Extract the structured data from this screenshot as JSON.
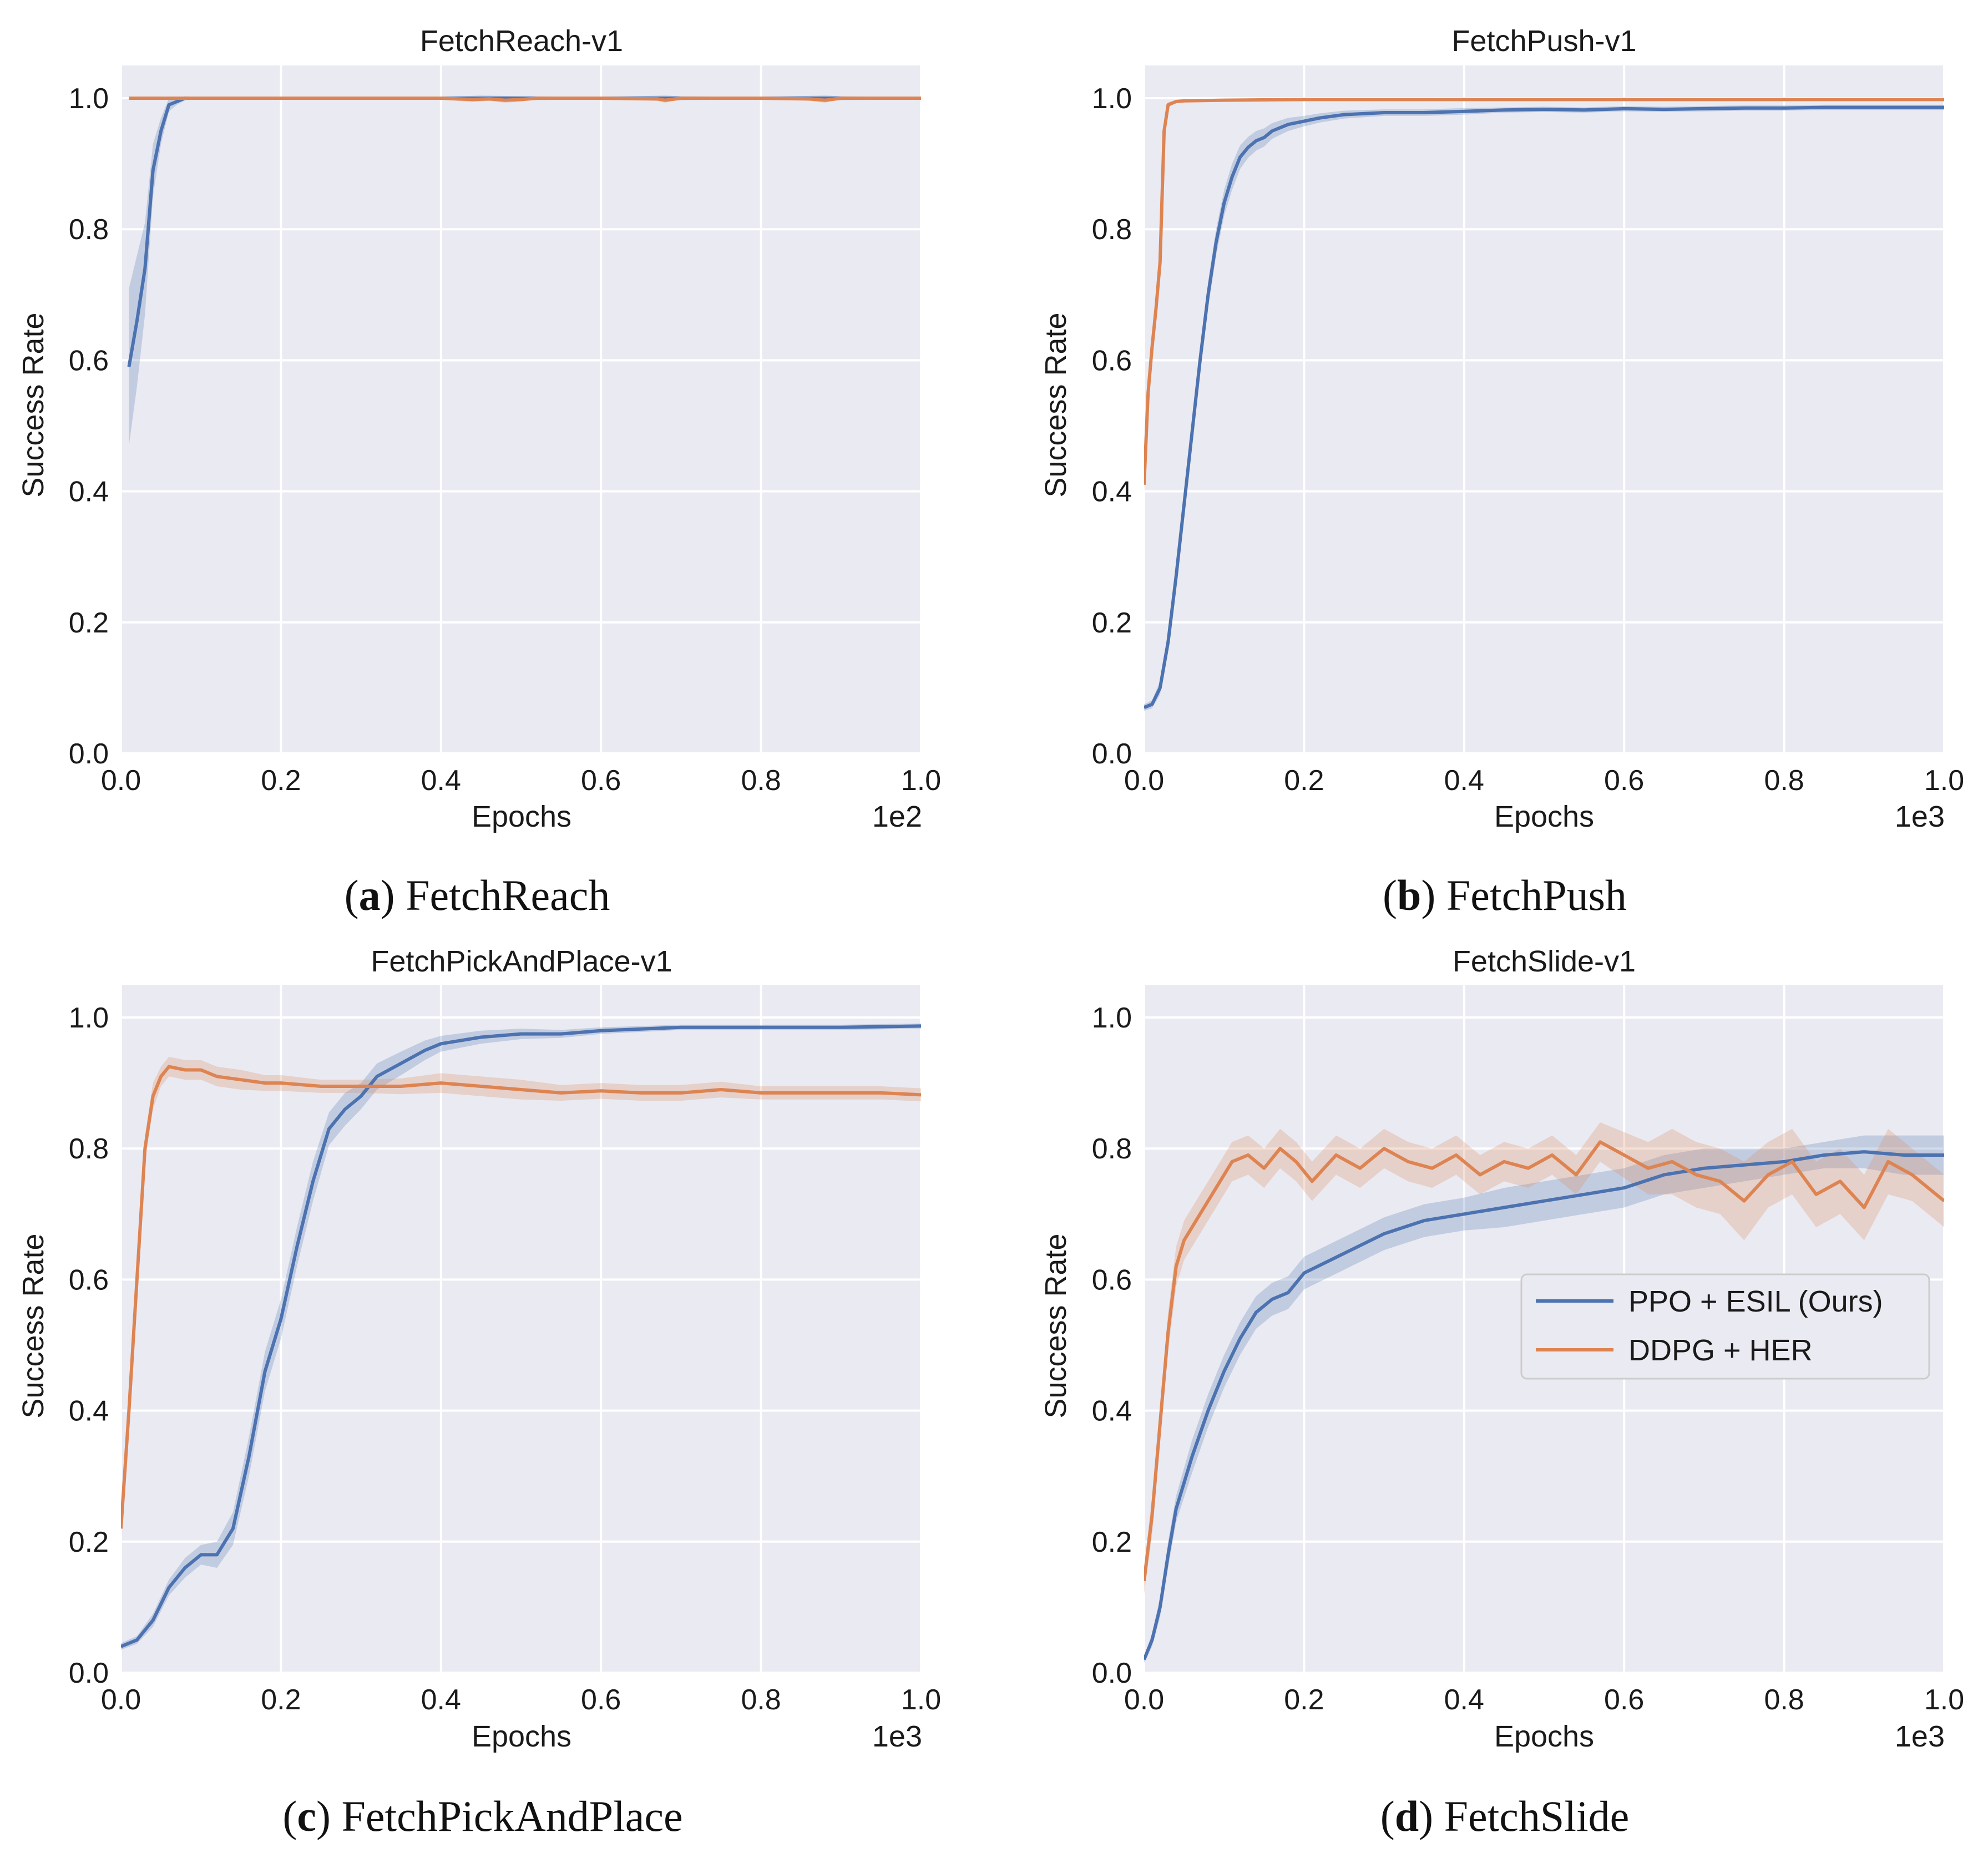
{
  "figure": {
    "legend": {
      "entries": [
        {
          "label": "PPO + ESIL (Ours)",
          "color": "#4c72b0"
        },
        {
          "label": "DDPG + HER",
          "color": "#dd8452"
        }
      ],
      "placement": "center-right of panel (d)"
    },
    "colors": {
      "background": "#eaeaf2",
      "grid": "#ffffff",
      "ppo": "#4c72b0",
      "ddpg": "#dd8452"
    }
  },
  "panels": [
    {
      "id": "a",
      "title": "FetchReach-v1",
      "caption_letter": "a",
      "caption_text": "FetchReach",
      "xlabel": "Epochs",
      "ylabel": "Success Rate",
      "offset_text": "1e2"
    },
    {
      "id": "b",
      "title": "FetchPush-v1",
      "caption_letter": "b",
      "caption_text": "FetchPush",
      "xlabel": "Epochs",
      "ylabel": "Success Rate",
      "offset_text": "1e3"
    },
    {
      "id": "c",
      "title": "FetchPickAndPlace-v1",
      "caption_letter": "c",
      "caption_text": "FetchPickAndPlace",
      "xlabel": "Epochs",
      "ylabel": "Success Rate",
      "offset_text": "1e3"
    },
    {
      "id": "d",
      "title": "FetchSlide-v1",
      "caption_letter": "d",
      "caption_text": "FetchSlide",
      "xlabel": "Epochs",
      "ylabel": "Success Rate",
      "offset_text": "1e3"
    }
  ],
  "chart_data": [
    {
      "type": "line",
      "title": "FetchReach-v1",
      "xlabel": "Epochs",
      "ylabel": "Success Rate",
      "x_scale_label": "1e2",
      "xlim": [
        0,
        1.0
      ],
      "ylim": [
        0,
        1.05
      ],
      "xticks": [
        0.0,
        0.2,
        0.4,
        0.6,
        0.8,
        1.0
      ],
      "xtick_labels": [
        "0.0",
        "0.2",
        "0.4",
        "0.6",
        "0.8",
        "1.0"
      ],
      "yticks": [
        0.0,
        0.2,
        0.4,
        0.6,
        0.8,
        1.0
      ],
      "ytick_labels": [
        "0.0",
        "0.2",
        "0.4",
        "0.6",
        "0.8",
        "1.0"
      ],
      "grid": true,
      "series": [
        {
          "name": "PPO + ESIL (Ours)",
          "color": "#4c72b0",
          "x": [
            0.01,
            0.02,
            0.03,
            0.04,
            0.05,
            0.06,
            0.07,
            0.08,
            0.1,
            0.2,
            0.4,
            0.45,
            0.5,
            0.6,
            0.68,
            0.7,
            0.8,
            0.88,
            0.9,
            1.0
          ],
          "y": [
            0.59,
            0.66,
            0.74,
            0.89,
            0.95,
            0.99,
            0.995,
            1.0,
            1.0,
            1.0,
            1.0,
            1.0,
            1.0,
            1.0,
            1.0,
            1.0,
            1.0,
            1.0,
            1.0,
            1.0
          ],
          "band": [
            0.12,
            0.1,
            0.07,
            0.04,
            0.02,
            0.01,
            0.005,
            0.003,
            0.002,
            0.002,
            0.002,
            0.004,
            0.003,
            0.002,
            0.004,
            0.003,
            0.002,
            0.004,
            0.003,
            0.002
          ]
        },
        {
          "name": "DDPG + HER",
          "color": "#dd8452",
          "x": [
            0.01,
            0.1,
            0.2,
            0.3,
            0.4,
            0.44,
            0.46,
            0.48,
            0.5,
            0.52,
            0.6,
            0.67,
            0.68,
            0.7,
            0.8,
            0.86,
            0.88,
            0.9,
            1.0
          ],
          "y": [
            1.0,
            1.0,
            1.0,
            1.0,
            1.0,
            0.998,
            0.999,
            0.997,
            0.998,
            1.0,
            1.0,
            0.999,
            0.997,
            1.0,
            1.0,
            0.999,
            0.997,
            1.0,
            1.0
          ],
          "band": [
            0.002,
            0.002,
            0.002,
            0.002,
            0.002,
            0.004,
            0.003,
            0.004,
            0.003,
            0.002,
            0.002,
            0.003,
            0.004,
            0.002,
            0.002,
            0.003,
            0.004,
            0.002,
            0.002
          ]
        }
      ]
    },
    {
      "type": "line",
      "title": "FetchPush-v1",
      "xlabel": "Epochs",
      "ylabel": "Success Rate",
      "x_scale_label": "1e3",
      "xlim": [
        0,
        1.0
      ],
      "ylim": [
        0,
        1.05
      ],
      "xticks": [
        0.0,
        0.2,
        0.4,
        0.6,
        0.8,
        1.0
      ],
      "xtick_labels": [
        "0.0",
        "0.2",
        "0.4",
        "0.6",
        "0.8",
        "1.0"
      ],
      "yticks": [
        0.0,
        0.2,
        0.4,
        0.6,
        0.8,
        1.0
      ],
      "ytick_labels": [
        "0.0",
        "0.2",
        "0.4",
        "0.6",
        "0.8",
        "1.0"
      ],
      "grid": true,
      "series": [
        {
          "name": "PPO + ESIL (Ours)",
          "color": "#4c72b0",
          "x": [
            0.0,
            0.01,
            0.02,
            0.03,
            0.04,
            0.05,
            0.06,
            0.07,
            0.08,
            0.09,
            0.1,
            0.11,
            0.12,
            0.13,
            0.14,
            0.15,
            0.16,
            0.18,
            0.2,
            0.22,
            0.25,
            0.3,
            0.35,
            0.4,
            0.45,
            0.5,
            0.55,
            0.6,
            0.65,
            0.7,
            0.75,
            0.8,
            0.85,
            0.9,
            0.95,
            1.0
          ],
          "y": [
            0.07,
            0.075,
            0.1,
            0.17,
            0.27,
            0.38,
            0.49,
            0.6,
            0.7,
            0.78,
            0.84,
            0.88,
            0.91,
            0.925,
            0.935,
            0.94,
            0.95,
            0.96,
            0.965,
            0.97,
            0.975,
            0.978,
            0.978,
            0.98,
            0.982,
            0.983,
            0.982,
            0.984,
            0.983,
            0.984,
            0.985,
            0.985,
            0.986,
            0.986,
            0.986,
            0.986
          ],
          "band": [
            0.005,
            0.006,
            0.01,
            0.015,
            0.02,
            0.02,
            0.02,
            0.02,
            0.02,
            0.02,
            0.02,
            0.02,
            0.018,
            0.016,
            0.015,
            0.014,
            0.012,
            0.01,
            0.008,
            0.007,
            0.006,
            0.005,
            0.005,
            0.005,
            0.004,
            0.004,
            0.004,
            0.004,
            0.004,
            0.004,
            0.004,
            0.004,
            0.004,
            0.004,
            0.004,
            0.004
          ]
        },
        {
          "name": "DDPG + HER",
          "color": "#dd8452",
          "x": [
            0.0,
            0.005,
            0.01,
            0.015,
            0.02,
            0.025,
            0.03,
            0.04,
            0.05,
            0.1,
            0.2,
            0.3,
            0.4,
            0.5,
            0.6,
            0.7,
            0.8,
            0.9,
            1.0
          ],
          "y": [
            0.41,
            0.55,
            0.62,
            0.68,
            0.75,
            0.95,
            0.99,
            0.995,
            0.996,
            0.997,
            0.998,
            0.998,
            0.998,
            0.998,
            0.998,
            0.998,
            0.998,
            0.998,
            0.998
          ],
          "band": [
            0.01,
            0.01,
            0.01,
            0.01,
            0.01,
            0.006,
            0.004,
            0.002,
            0.002,
            0.002,
            0.002,
            0.002,
            0.002,
            0.002,
            0.002,
            0.002,
            0.002,
            0.002,
            0.002
          ]
        }
      ]
    },
    {
      "type": "line",
      "title": "FetchPickAndPlace-v1",
      "xlabel": "Epochs",
      "ylabel": "Success Rate",
      "x_scale_label": "1e3",
      "xlim": [
        0,
        1.0
      ],
      "ylim": [
        0,
        1.05
      ],
      "xticks": [
        0.0,
        0.2,
        0.4,
        0.6,
        0.8,
        1.0
      ],
      "xtick_labels": [
        "0.0",
        "0.2",
        "0.4",
        "0.6",
        "0.8",
        "1.0"
      ],
      "yticks": [
        0.0,
        0.2,
        0.4,
        0.6,
        0.8,
        1.0
      ],
      "ytick_labels": [
        "0.0",
        "0.2",
        "0.4",
        "0.6",
        "0.8",
        "1.0"
      ],
      "grid": true,
      "series": [
        {
          "name": "PPO + ESIL (Ours)",
          "color": "#4c72b0",
          "x": [
            0.0,
            0.02,
            0.04,
            0.06,
            0.08,
            0.1,
            0.12,
            0.14,
            0.16,
            0.18,
            0.2,
            0.22,
            0.24,
            0.26,
            0.28,
            0.3,
            0.32,
            0.35,
            0.38,
            0.4,
            0.45,
            0.5,
            0.55,
            0.6,
            0.7,
            0.8,
            0.9,
            1.0
          ],
          "y": [
            0.04,
            0.05,
            0.08,
            0.13,
            0.16,
            0.18,
            0.18,
            0.22,
            0.33,
            0.46,
            0.54,
            0.65,
            0.75,
            0.83,
            0.86,
            0.88,
            0.91,
            0.93,
            0.95,
            0.96,
            0.97,
            0.975,
            0.975,
            0.98,
            0.985,
            0.985,
            0.985,
            0.987
          ],
          "band": [
            0.005,
            0.006,
            0.01,
            0.012,
            0.015,
            0.015,
            0.02,
            0.025,
            0.03,
            0.03,
            0.03,
            0.03,
            0.03,
            0.025,
            0.025,
            0.02,
            0.02,
            0.018,
            0.015,
            0.012,
            0.01,
            0.008,
            0.006,
            0.005,
            0.004,
            0.004,
            0.004,
            0.004
          ]
        },
        {
          "name": "DDPG + HER",
          "color": "#dd8452",
          "x": [
            0.0,
            0.01,
            0.02,
            0.03,
            0.04,
            0.05,
            0.06,
            0.08,
            0.1,
            0.12,
            0.15,
            0.18,
            0.2,
            0.25,
            0.3,
            0.35,
            0.4,
            0.45,
            0.5,
            0.55,
            0.6,
            0.65,
            0.7,
            0.75,
            0.8,
            0.85,
            0.9,
            0.95,
            1.0
          ],
          "y": [
            0.22,
            0.4,
            0.6,
            0.8,
            0.88,
            0.91,
            0.925,
            0.92,
            0.92,
            0.91,
            0.905,
            0.9,
            0.9,
            0.895,
            0.895,
            0.895,
            0.9,
            0.895,
            0.89,
            0.885,
            0.888,
            0.885,
            0.885,
            0.89,
            0.885,
            0.885,
            0.885,
            0.885,
            0.882
          ],
          "band": [
            0.01,
            0.02,
            0.02,
            0.02,
            0.02,
            0.015,
            0.015,
            0.015,
            0.015,
            0.015,
            0.015,
            0.012,
            0.012,
            0.01,
            0.01,
            0.012,
            0.015,
            0.015,
            0.015,
            0.012,
            0.012,
            0.012,
            0.012,
            0.012,
            0.01,
            0.01,
            0.01,
            0.01,
            0.01
          ]
        }
      ]
    },
    {
      "type": "line",
      "title": "FetchSlide-v1",
      "xlabel": "Epochs",
      "ylabel": "Success Rate",
      "x_scale_label": "1e3",
      "xlim": [
        0,
        1.0
      ],
      "ylim": [
        0,
        1.05
      ],
      "xticks": [
        0.0,
        0.2,
        0.4,
        0.6,
        0.8,
        1.0
      ],
      "xtick_labels": [
        "0.0",
        "0.2",
        "0.4",
        "0.6",
        "0.8",
        "1.0"
      ],
      "yticks": [
        0.0,
        0.2,
        0.4,
        0.6,
        0.8,
        1.0
      ],
      "ytick_labels": [
        "0.0",
        "0.2",
        "0.4",
        "0.6",
        "0.8",
        "1.0"
      ],
      "grid": true,
      "legend_location": "center-right",
      "series": [
        {
          "name": "PPO + ESIL (Ours)",
          "color": "#4c72b0",
          "x": [
            0.0,
            0.01,
            0.02,
            0.03,
            0.04,
            0.06,
            0.08,
            0.1,
            0.12,
            0.14,
            0.16,
            0.18,
            0.2,
            0.25,
            0.3,
            0.35,
            0.4,
            0.45,
            0.5,
            0.55,
            0.6,
            0.65,
            0.7,
            0.75,
            0.8,
            0.85,
            0.9,
            0.95,
            1.0
          ],
          "y": [
            0.02,
            0.05,
            0.1,
            0.18,
            0.25,
            0.33,
            0.4,
            0.46,
            0.51,
            0.55,
            0.57,
            0.58,
            0.61,
            0.64,
            0.67,
            0.69,
            0.7,
            0.71,
            0.72,
            0.73,
            0.74,
            0.76,
            0.77,
            0.775,
            0.78,
            0.79,
            0.795,
            0.79,
            0.79
          ],
          "band": [
            0.005,
            0.01,
            0.015,
            0.02,
            0.02,
            0.025,
            0.025,
            0.025,
            0.025,
            0.025,
            0.025,
            0.025,
            0.025,
            0.025,
            0.025,
            0.025,
            0.025,
            0.03,
            0.03,
            0.03,
            0.03,
            0.03,
            0.03,
            0.025,
            0.02,
            0.02,
            0.025,
            0.03,
            0.03
          ]
        },
        {
          "name": "DDPG + HER",
          "color": "#dd8452",
          "x": [
            0.0,
            0.01,
            0.02,
            0.03,
            0.04,
            0.05,
            0.07,
            0.09,
            0.11,
            0.13,
            0.15,
            0.17,
            0.19,
            0.21,
            0.24,
            0.27,
            0.3,
            0.33,
            0.36,
            0.39,
            0.42,
            0.45,
            0.48,
            0.51,
            0.54,
            0.57,
            0.6,
            0.63,
            0.66,
            0.69,
            0.72,
            0.75,
            0.78,
            0.81,
            0.84,
            0.87,
            0.9,
            0.93,
            0.96,
            1.0
          ],
          "y": [
            0.14,
            0.24,
            0.38,
            0.52,
            0.62,
            0.66,
            0.7,
            0.74,
            0.78,
            0.79,
            0.77,
            0.8,
            0.78,
            0.75,
            0.79,
            0.77,
            0.8,
            0.78,
            0.77,
            0.79,
            0.76,
            0.78,
            0.77,
            0.79,
            0.76,
            0.81,
            0.79,
            0.77,
            0.78,
            0.76,
            0.75,
            0.72,
            0.76,
            0.78,
            0.73,
            0.75,
            0.71,
            0.78,
            0.76,
            0.72
          ],
          "band": [
            0.02,
            0.03,
            0.03,
            0.03,
            0.03,
            0.03,
            0.03,
            0.03,
            0.03,
            0.03,
            0.03,
            0.03,
            0.03,
            0.03,
            0.03,
            0.03,
            0.03,
            0.03,
            0.03,
            0.03,
            0.03,
            0.03,
            0.03,
            0.03,
            0.03,
            0.03,
            0.035,
            0.04,
            0.05,
            0.05,
            0.05,
            0.06,
            0.05,
            0.05,
            0.05,
            0.05,
            0.05,
            0.05,
            0.04,
            0.04
          ]
        }
      ]
    }
  ]
}
